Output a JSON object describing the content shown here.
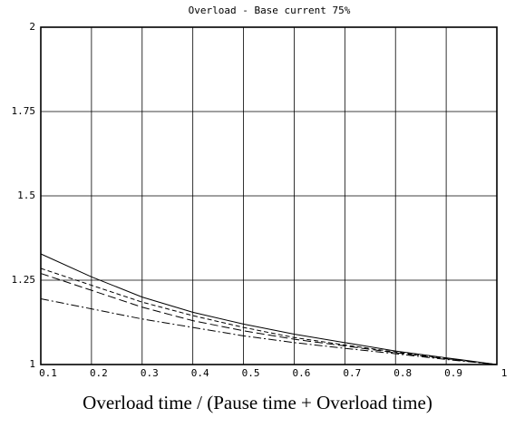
{
  "chart_data": {
    "type": "line",
    "title": "Overload - Base current 75%",
    "x_label": "Overload time / (Pause time + Overload time)",
    "x": [
      0.1,
      0.2,
      0.3,
      0.4,
      0.5,
      0.6,
      0.7,
      0.8,
      0.9,
      1
    ],
    "series": [
      {
        "color": "#000000",
        "dash": "solid",
        "values": [
          1.328,
          1.26,
          1.2,
          1.155,
          1.12,
          1.09,
          1.065,
          1.04,
          1.02,
          1.0
        ]
      },
      {
        "color": "#000000",
        "dash": "dashed",
        "values": [
          1.285,
          1.235,
          1.185,
          1.145,
          1.11,
          1.08,
          1.058,
          1.037,
          1.018,
          1.0
        ]
      },
      {
        "color": "#000000",
        "dash": "longdash",
        "values": [
          1.27,
          1.22,
          1.17,
          1.13,
          1.1,
          1.075,
          1.055,
          1.035,
          1.017,
          1.0
        ]
      },
      {
        "color": "#000000",
        "dash": "dashdot",
        "values": [
          1.195,
          1.165,
          1.135,
          1.11,
          1.085,
          1.065,
          1.048,
          1.032,
          1.015,
          1.0
        ]
      }
    ],
    "xlim": [
      0.1,
      1
    ],
    "ylim": [
      1,
      2
    ],
    "xticks": [
      0.1,
      0.2,
      0.3,
      0.4,
      0.5,
      0.6,
      0.7,
      0.8,
      0.9,
      1
    ],
    "yticks": [
      1,
      1.25,
      1.5,
      1.75,
      2
    ],
    "grid": true
  }
}
